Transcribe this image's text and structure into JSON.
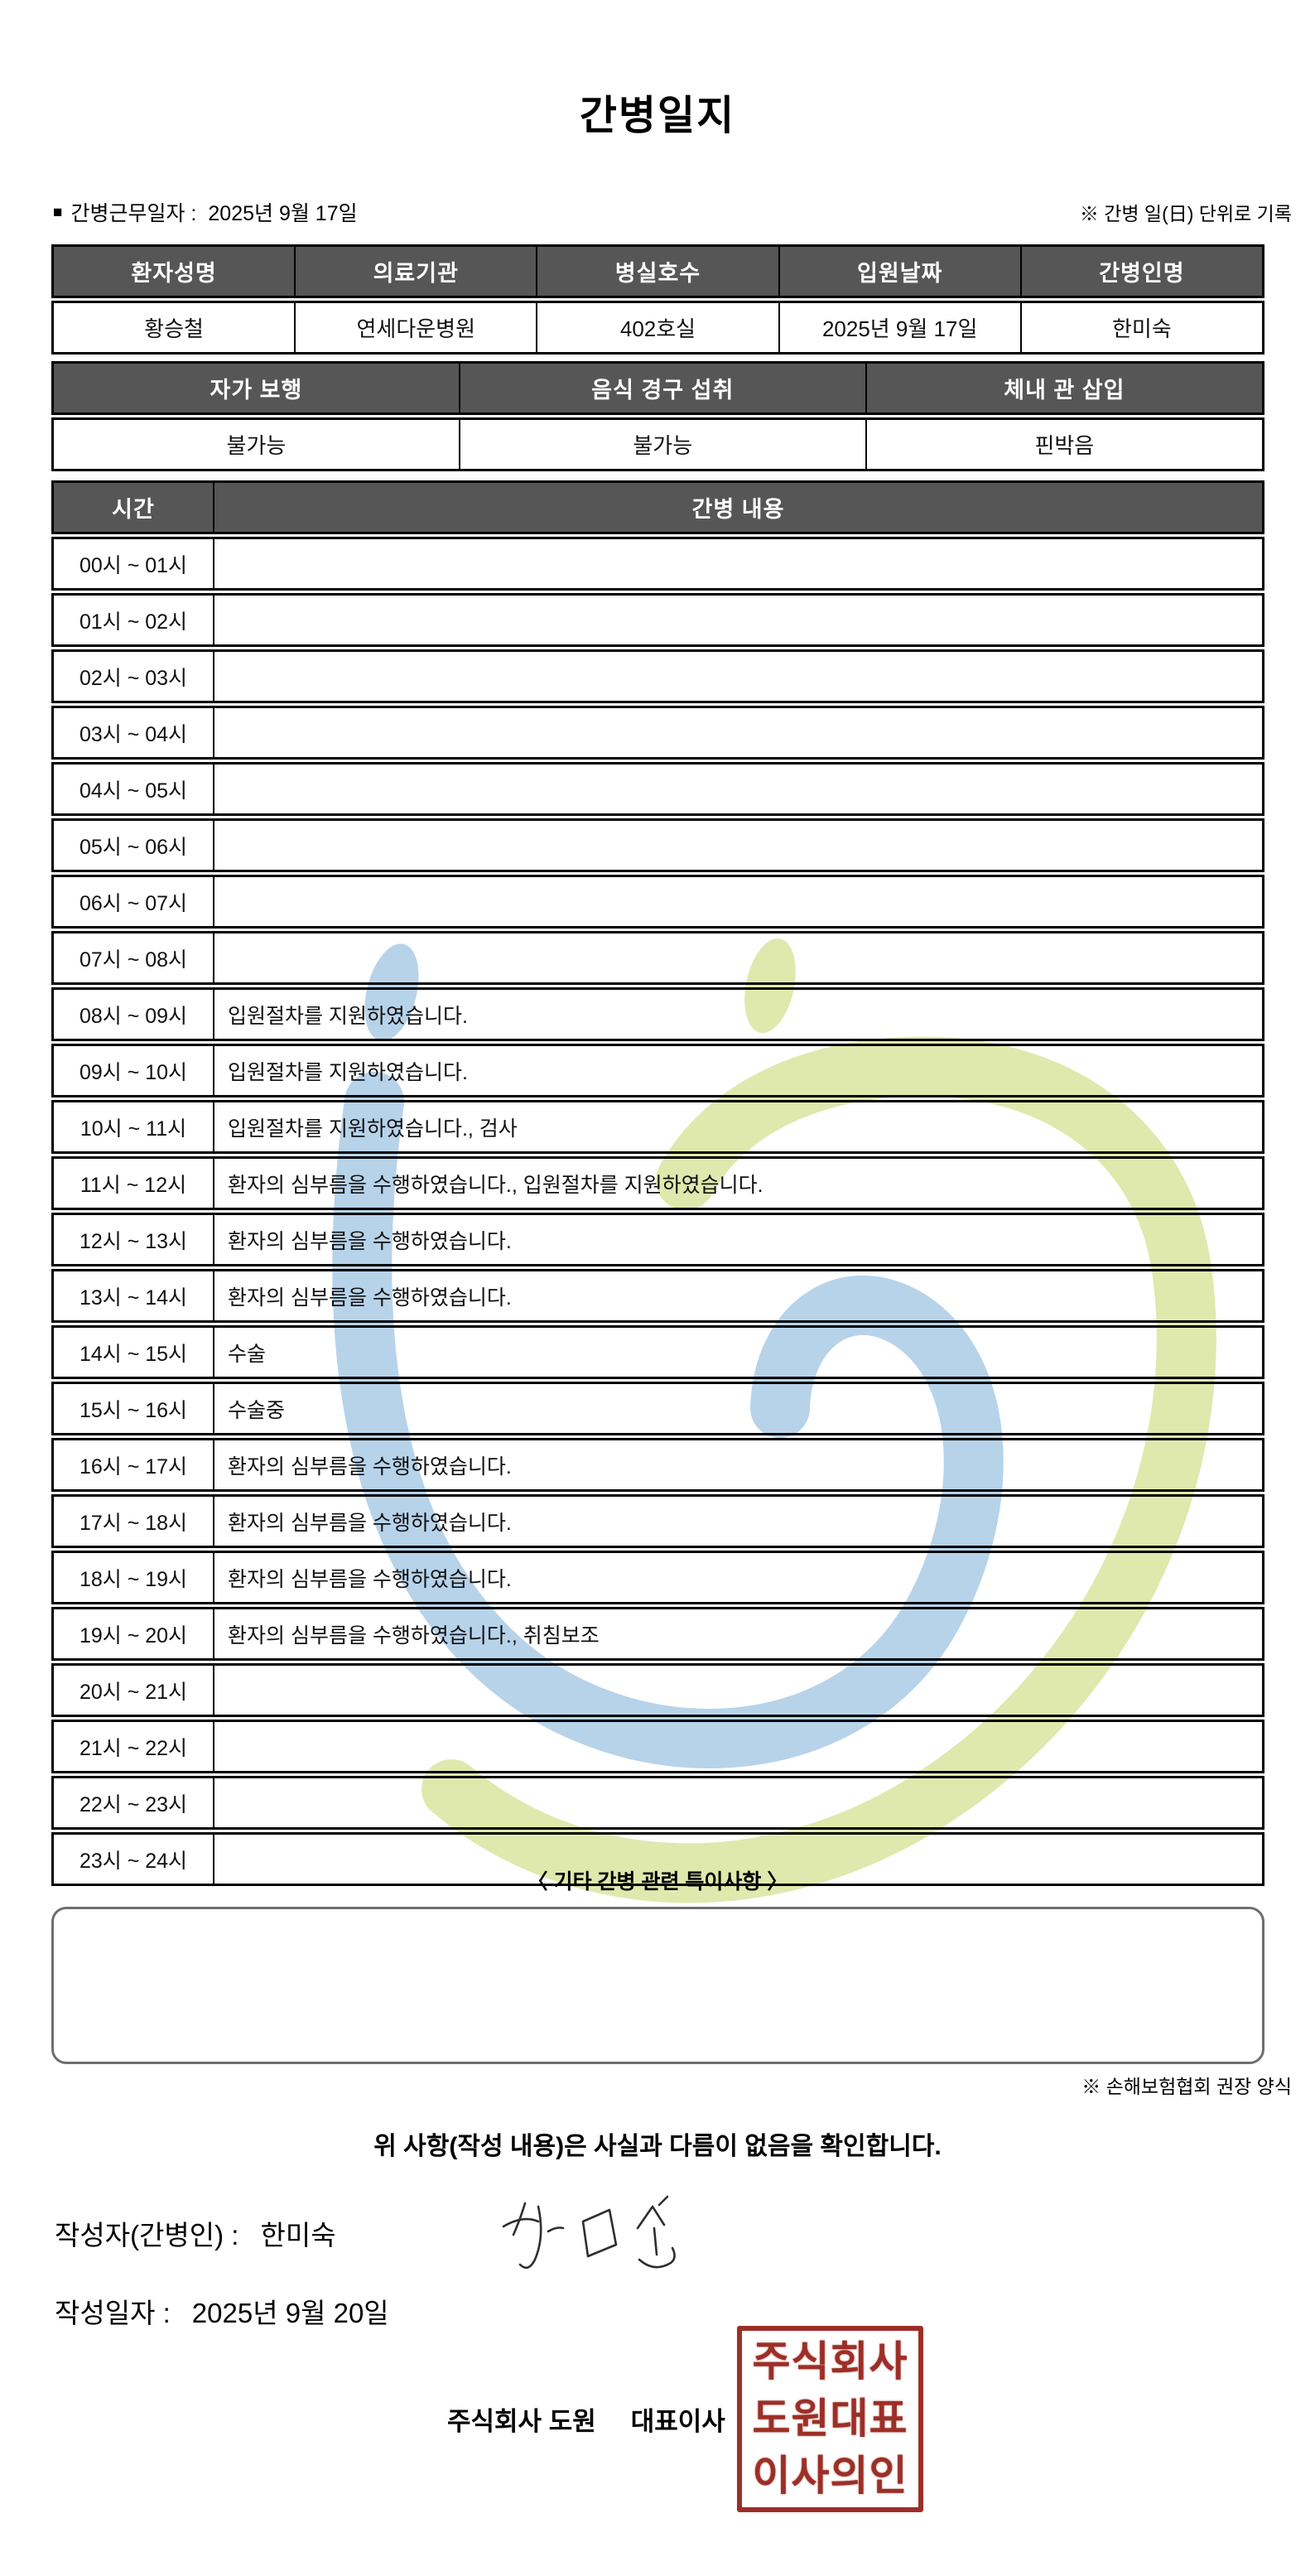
{
  "page": {
    "title": "간병일지"
  },
  "meta": {
    "bullet": "■",
    "work_date_label": "간병근무일자 :",
    "work_date_value": "2025년 9월 17일",
    "unit_note": "※ 간병 일(日) 단위로 기록"
  },
  "patient_table": {
    "headers": [
      "환자성명",
      "의료기관",
      "병실호수",
      "입원날짜",
      "간병인명"
    ],
    "values": [
      "황승철",
      "연세다운병원",
      "402호실",
      "2025년 9월 17일",
      "한미숙"
    ]
  },
  "condition_table": {
    "headers": [
      "자가 보행",
      "음식 경구 섭취",
      "체내 관 삽입"
    ],
    "values": [
      "불가능",
      "불가능",
      "핀박음"
    ]
  },
  "care_log": {
    "time_header": "시간",
    "content_header": "간병 내용",
    "rows": [
      {
        "time": "00시 ~ 01시",
        "content": ""
      },
      {
        "time": "01시 ~ 02시",
        "content": ""
      },
      {
        "time": "02시 ~ 03시",
        "content": ""
      },
      {
        "time": "03시 ~ 04시",
        "content": ""
      },
      {
        "time": "04시 ~ 05시",
        "content": ""
      },
      {
        "time": "05시 ~ 06시",
        "content": ""
      },
      {
        "time": "06시 ~ 07시",
        "content": ""
      },
      {
        "time": "07시 ~ 08시",
        "content": ""
      },
      {
        "time": "08시 ~ 09시",
        "content": "입원절차를 지원하였습니다."
      },
      {
        "time": "09시 ~ 10시",
        "content": "입원절차를 지원하였습니다."
      },
      {
        "time": "10시 ~ 11시",
        "content": "입원절차를 지원하였습니다., 검사"
      },
      {
        "time": "11시 ~ 12시",
        "content": "환자의 심부름을 수행하였습니다., 입원절차를 지원하였습니다."
      },
      {
        "time": "12시 ~ 13시",
        "content": "환자의 심부름을 수행하였습니다."
      },
      {
        "time": "13시 ~ 14시",
        "content": "환자의 심부름을 수행하였습니다."
      },
      {
        "time": "14시 ~ 15시",
        "content": "수술"
      },
      {
        "time": "15시 ~ 16시",
        "content": "수술중"
      },
      {
        "time": "16시 ~ 17시",
        "content": "환자의 심부름을 수행하였습니다."
      },
      {
        "time": "17시 ~ 18시",
        "content": "환자의 심부름을 수행하였습니다."
      },
      {
        "time": "18시 ~ 19시",
        "content": "환자의 심부름을 수행하였습니다."
      },
      {
        "time": "19시 ~ 20시",
        "content": "환자의 심부름을 수행하였습니다., 취침보조"
      },
      {
        "time": "20시 ~ 21시",
        "content": ""
      },
      {
        "time": "21시 ~ 22시",
        "content": ""
      },
      {
        "time": "22시 ~ 23시",
        "content": ""
      },
      {
        "time": "23시 ~ 24시",
        "content": ""
      }
    ]
  },
  "notes": {
    "heading": "〈 기타 간병 관련 특이사항 〉",
    "content": "",
    "form_note": "※ 손해보험협회 권장 양식"
  },
  "confirmation": {
    "statement": "위 사항(작성 내용)은 사실과 다름이 없음을 확인합니다.",
    "writer_label": "작성자(간병인) :",
    "writer_name": "한미숙",
    "date_label": "작성일자 :",
    "date_value": "2025년 9월 20일",
    "company_name": "주식회사 도원",
    "company_role": "대표이사",
    "stamp_lines": [
      "주식회사",
      "도원대표",
      "이사의인"
    ]
  },
  "colors": {
    "table_header_bg": "#565656",
    "border": "#000000",
    "stamp_red": "#9c2f27",
    "watermark_blue": "#b7d3ea",
    "watermark_green": "#dfe9ad"
  }
}
